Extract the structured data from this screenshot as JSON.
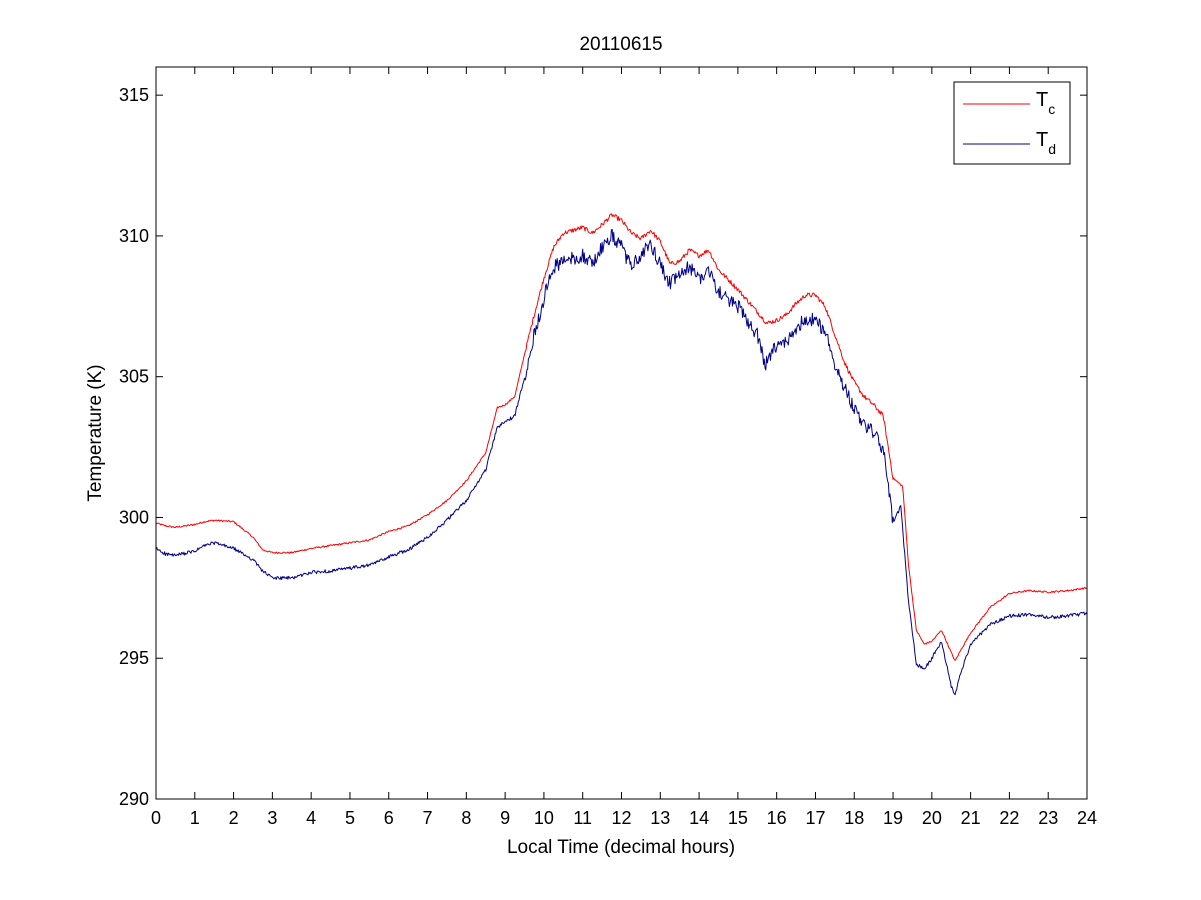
{
  "chart_data": {
    "type": "line",
    "title": "20110615",
    "xlabel": "Local Time (decimal hours)",
    "ylabel": "Temperature (K)",
    "xlim": [
      0,
      24
    ],
    "ylim": [
      290,
      316
    ],
    "x_ticks": [
      0,
      1,
      2,
      3,
      4,
      5,
      6,
      7,
      8,
      9,
      10,
      11,
      12,
      13,
      14,
      15,
      16,
      17,
      18,
      19,
      20,
      21,
      22,
      23,
      24
    ],
    "y_ticks": [
      290,
      295,
      300,
      305,
      310,
      315
    ],
    "grid": false,
    "legend_position": "top-right",
    "series": [
      {
        "name": "T_c",
        "legend_main": "T",
        "legend_sub": "c",
        "color": "#ff0000",
        "points": [
          [
            0,
            299.8
          ],
          [
            0.25,
            299.7
          ],
          [
            0.5,
            299.65
          ],
          [
            1,
            299.75
          ],
          [
            1.25,
            299.85
          ],
          [
            1.5,
            299.9
          ],
          [
            2,
            299.85
          ],
          [
            2.5,
            299.3
          ],
          [
            2.75,
            298.85
          ],
          [
            3,
            298.75
          ],
          [
            3.5,
            298.75
          ],
          [
            4,
            298.9
          ],
          [
            4.5,
            299.0
          ],
          [
            5,
            299.1
          ],
          [
            5.5,
            299.2
          ],
          [
            6,
            299.5
          ],
          [
            6.5,
            299.7
          ],
          [
            7,
            300.1
          ],
          [
            7.5,
            300.6
          ],
          [
            8,
            301.3
          ],
          [
            8.5,
            302.3
          ],
          [
            8.8,
            303.9
          ],
          [
            9,
            304.0
          ],
          [
            9.25,
            304.3
          ],
          [
            9.5,
            305.8
          ],
          [
            9.75,
            307.2
          ],
          [
            10,
            308.5
          ],
          [
            10.25,
            309.6
          ],
          [
            10.5,
            310.1
          ],
          [
            11,
            310.3
          ],
          [
            11.25,
            310.1
          ],
          [
            11.5,
            310.4
          ],
          [
            11.75,
            310.75
          ],
          [
            12,
            310.55
          ],
          [
            12.25,
            310.1
          ],
          [
            12.5,
            309.9
          ],
          [
            12.75,
            310.2
          ],
          [
            13,
            309.8
          ],
          [
            13.25,
            309.0
          ],
          [
            13.5,
            309.1
          ],
          [
            13.75,
            309.5
          ],
          [
            14,
            309.3
          ],
          [
            14.25,
            309.5
          ],
          [
            14.5,
            308.8
          ],
          [
            15,
            308.1
          ],
          [
            15.5,
            307.3
          ],
          [
            15.75,
            306.9
          ],
          [
            16,
            307.0
          ],
          [
            16.25,
            307.2
          ],
          [
            16.5,
            307.6
          ],
          [
            16.75,
            307.9
          ],
          [
            17,
            307.9
          ],
          [
            17.25,
            307.5
          ],
          [
            17.5,
            306.5
          ],
          [
            17.75,
            305.5
          ],
          [
            18,
            304.8
          ],
          [
            18.25,
            304.3
          ],
          [
            18.5,
            304.0
          ],
          [
            18.75,
            303.6
          ],
          [
            19,
            301.4
          ],
          [
            19.25,
            301.1
          ],
          [
            19.4,
            298.3
          ],
          [
            19.6,
            296.0
          ],
          [
            19.8,
            295.5
          ],
          [
            20,
            295.6
          ],
          [
            20.25,
            296.0
          ],
          [
            20.5,
            295.2
          ],
          [
            20.6,
            294.9
          ],
          [
            20.75,
            295.3
          ],
          [
            21,
            295.9
          ],
          [
            21.5,
            296.8
          ],
          [
            22,
            297.3
          ],
          [
            22.5,
            297.4
          ],
          [
            23,
            297.35
          ],
          [
            23.5,
            297.4
          ],
          [
            24,
            297.5
          ]
        ]
      },
      {
        "name": "T_d",
        "legend_main": "T",
        "legend_sub": "d",
        "color": "#00008b",
        "points": [
          [
            0,
            298.9
          ],
          [
            0.25,
            298.7
          ],
          [
            0.5,
            298.65
          ],
          [
            1,
            298.8
          ],
          [
            1.25,
            299.0
          ],
          [
            1.5,
            299.1
          ],
          [
            2,
            298.9
          ],
          [
            2.5,
            298.5
          ],
          [
            2.75,
            298.1
          ],
          [
            3,
            297.85
          ],
          [
            3.5,
            297.85
          ],
          [
            4,
            298.05
          ],
          [
            4.5,
            298.1
          ],
          [
            5,
            298.2
          ],
          [
            5.5,
            298.3
          ],
          [
            6,
            298.6
          ],
          [
            6.5,
            298.85
          ],
          [
            7,
            299.3
          ],
          [
            7.5,
            299.9
          ],
          [
            8,
            300.6
          ],
          [
            8.5,
            301.7
          ],
          [
            8.8,
            303.2
          ],
          [
            9,
            303.4
          ],
          [
            9.25,
            303.6
          ],
          [
            9.5,
            305.0
          ],
          [
            9.75,
            306.5
          ],
          [
            10,
            307.8
          ],
          [
            10.25,
            308.9
          ],
          [
            10.5,
            309.1
          ],
          [
            11,
            309.3
          ],
          [
            11.25,
            309.0
          ],
          [
            11.5,
            309.6
          ],
          [
            11.75,
            310.0
          ],
          [
            12,
            309.6
          ],
          [
            12.25,
            308.9
          ],
          [
            12.5,
            309.3
          ],
          [
            12.75,
            309.7
          ],
          [
            13,
            309.0
          ],
          [
            13.25,
            308.3
          ],
          [
            13.5,
            308.6
          ],
          [
            13.75,
            308.9
          ],
          [
            14,
            308.5
          ],
          [
            14.25,
            308.8
          ],
          [
            14.5,
            308.0
          ],
          [
            15,
            307.5
          ],
          [
            15.5,
            306.5
          ],
          [
            15.7,
            305.4
          ],
          [
            16,
            306.1
          ],
          [
            16.25,
            306.2
          ],
          [
            16.5,
            306.7
          ],
          [
            16.75,
            307.1
          ],
          [
            17,
            307.0
          ],
          [
            17.25,
            306.6
          ],
          [
            17.5,
            305.5
          ],
          [
            17.75,
            304.6
          ],
          [
            18,
            303.9
          ],
          [
            18.25,
            303.3
          ],
          [
            18.5,
            303.0
          ],
          [
            18.75,
            302.4
          ],
          [
            19,
            299.8
          ],
          [
            19.2,
            300.4
          ],
          [
            19.4,
            297.0
          ],
          [
            19.6,
            294.8
          ],
          [
            19.8,
            294.6
          ],
          [
            20,
            295.0
          ],
          [
            20.25,
            295.6
          ],
          [
            20.5,
            294.0
          ],
          [
            20.6,
            293.7
          ],
          [
            20.75,
            294.5
          ],
          [
            21,
            295.5
          ],
          [
            21.5,
            296.2
          ],
          [
            22,
            296.5
          ],
          [
            22.5,
            296.55
          ],
          [
            23,
            296.45
          ],
          [
            23.5,
            296.5
          ],
          [
            24,
            296.6
          ]
        ]
      }
    ]
  }
}
